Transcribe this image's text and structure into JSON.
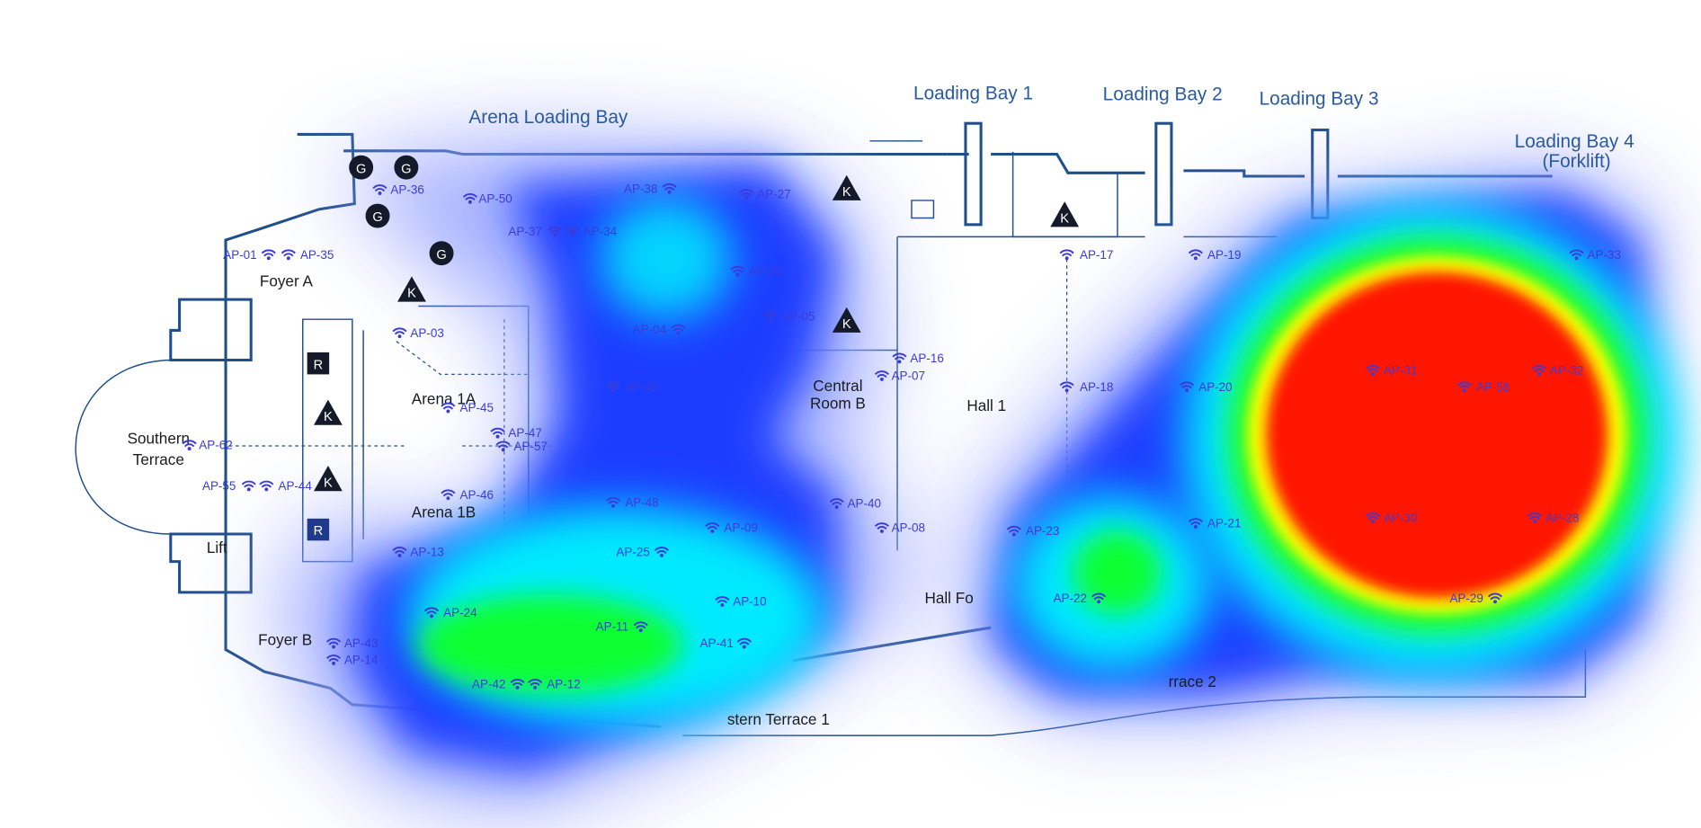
{
  "areas": [
    "Arena Loading Bay",
    "Loading Bay 1",
    "Loading Bay 2",
    "Loading Bay 3",
    "Loading Bay 4",
    "(Forklift)",
    "Foyer A",
    "Arena 1A",
    "Southern",
    "Terrace",
    "Central",
    "Room B",
    "Hall 1",
    "Arena 1B",
    "Foyer B",
    "Hall Fo",
    "Lift",
    "stern Terrace 1",
    "rrace 2"
  ],
  "markers": [
    "G",
    "G",
    "G",
    "G",
    "K",
    "K",
    "K",
    "K",
    "K",
    "K",
    "R",
    "R"
  ],
  "access_points": [
    "AP-01",
    "AP-35",
    "AP-36",
    "AP-50",
    "AP-38",
    "AP-27",
    "AP-37",
    "AP-34",
    "AP-39",
    "AP-04",
    "AP-05",
    "AP-03",
    "AP-49",
    "AP-45",
    "AP-47",
    "AP-57",
    "AP-62",
    "AP-55",
    "AP-44",
    "AP-46",
    "AP-48",
    "AP-09",
    "AP-40",
    "AP-08",
    "AP-16",
    "AP-07",
    "AP-13",
    "AP-25",
    "AP-24",
    "AP-10",
    "AP-11",
    "AP-41",
    "AP-43",
    "AP-14",
    "AP-42",
    "AP-12",
    "AP-17",
    "AP-19",
    "AP-33",
    "AP-18",
    "AP-20",
    "AP-31",
    "AP-32",
    "AP-58",
    "AP-23",
    "AP-21",
    "AP-30",
    "AP-28",
    "AP-22",
    "AP-29"
  ]
}
